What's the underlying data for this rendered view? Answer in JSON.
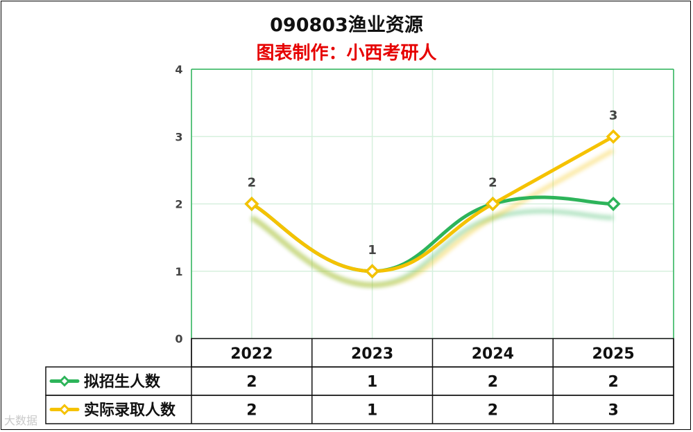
{
  "chart_data": {
    "type": "line",
    "title": "090803渔业资源",
    "subtitle": "图表制作：小西考研人",
    "categories": [
      "2022",
      "2023",
      "2024",
      "2025"
    ],
    "ylim": [
      0,
      4
    ],
    "yticks": [
      0,
      1,
      2,
      3,
      4
    ],
    "grid": true,
    "legend": "data-table",
    "series": [
      {
        "name": "拟招生人数",
        "values": [
          2,
          1,
          2,
          2
        ],
        "color": "#2db45a"
      },
      {
        "name": "实际录取人数",
        "values": [
          2,
          1,
          2,
          3
        ],
        "color": "#f5c200"
      }
    ]
  },
  "watermark": "大数据"
}
